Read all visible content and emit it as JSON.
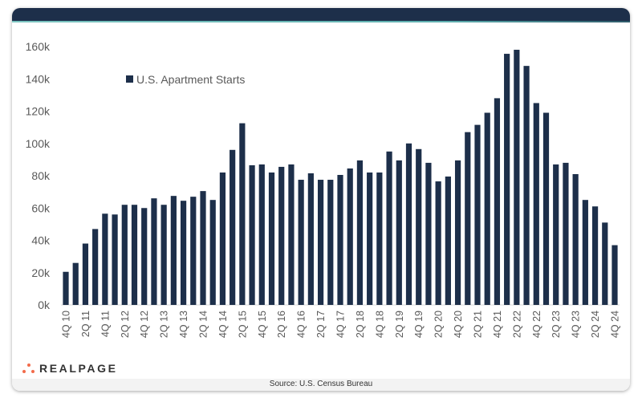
{
  "brand": {
    "logo_text": "REALPAGE",
    "accent": "#f26b4b",
    "header_color": "#1d2f4a"
  },
  "footer": {
    "source": "Source: U.S. Census Bureau"
  },
  "chart_data": {
    "type": "bar",
    "title": "",
    "xlabel": "",
    "ylabel": "",
    "ylim": [
      0,
      160
    ],
    "yticks": [
      "0k",
      "20k",
      "40k",
      "60k",
      "80k",
      "100k",
      "120k",
      "140k",
      "160k"
    ],
    "ytick_values": [
      0,
      20,
      40,
      60,
      80,
      100,
      120,
      140,
      160
    ],
    "grid": false,
    "legend": {
      "position": "top-left",
      "entries": [
        "U.S. Apartment Starts"
      ]
    },
    "bar_color": "#1d2f4a",
    "categories": [
      "4Q 10",
      "1Q 11",
      "2Q 11",
      "3Q 11",
      "4Q 11",
      "1Q 12",
      "2Q 12",
      "3Q 12",
      "4Q 12",
      "1Q 13",
      "2Q 13",
      "3Q 13",
      "4Q 13",
      "1Q 14",
      "2Q 14",
      "3Q 14",
      "4Q 14",
      "1Q 15",
      "2Q 15",
      "3Q 15",
      "4Q 15",
      "1Q 16",
      "2Q 16",
      "3Q 16",
      "4Q 16",
      "1Q 17",
      "2Q 17",
      "3Q 17",
      "4Q 17",
      "1Q 18",
      "2Q 18",
      "3Q 18",
      "4Q 18",
      "1Q 19",
      "2Q 19",
      "3Q 19",
      "4Q 19",
      "1Q 20",
      "2Q 20",
      "3Q 20",
      "4Q 20",
      "1Q 21",
      "2Q 21",
      "3Q 21",
      "4Q 21",
      "1Q 22",
      "2Q 22",
      "3Q 22",
      "4Q 22",
      "1Q 23",
      "2Q 23",
      "3Q 23",
      "4Q 23",
      "1Q 24",
      "2Q 24",
      "3Q 24",
      "4Q 24"
    ],
    "visible_tick_step": 2,
    "series": [
      {
        "name": "U.S. Apartment Starts",
        "unit": "thousands",
        "values": [
          20.5,
          26,
          38,
          47,
          56.5,
          56,
          62,
          62,
          60,
          66,
          62,
          67.5,
          64.5,
          67,
          70.5,
          65,
          82,
          96,
          112.5,
          86.5,
          87,
          82,
          85.5,
          87,
          77.5,
          81.5,
          77.5,
          77.5,
          80.5,
          84.5,
          89.5,
          82,
          82,
          95,
          89.5,
          100,
          96.5,
          88,
          76.5,
          79.5,
          89.5,
          107,
          111.5,
          119,
          128,
          155.5,
          158,
          148,
          125,
          119,
          87,
          88,
          81,
          65,
          61,
          51,
          37
        ]
      }
    ]
  }
}
